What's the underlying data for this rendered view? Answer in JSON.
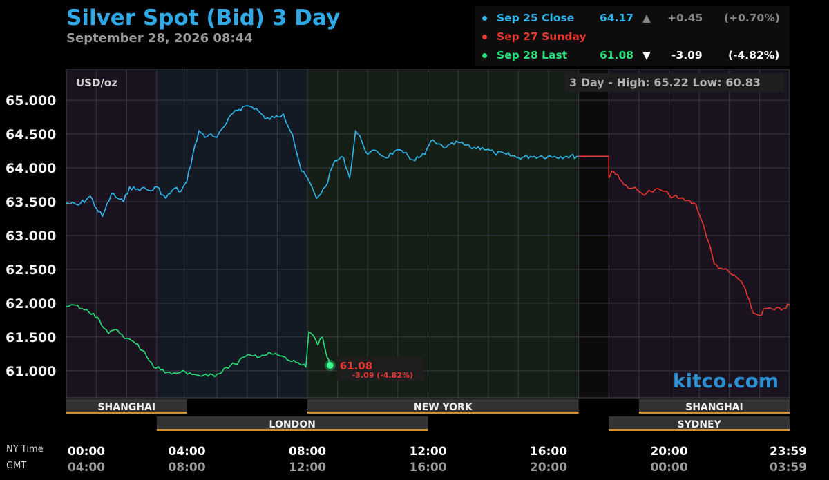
{
  "header": {
    "title": "Silver Spot (Bid) 3 Day",
    "subtitle": "September 28, 2026 08:44"
  },
  "legend": [
    {
      "label": "Sep 25 Close",
      "value": "64.17",
      "arrow": "▲",
      "change": "+0.45",
      "pct": "(+0.70%)",
      "color": "#2fb8f0"
    },
    {
      "label": "Sep 27 Sunday",
      "value": "",
      "arrow": "",
      "change": "",
      "pct": "",
      "color": "#e8382f"
    },
    {
      "label": "Sep 28 Last",
      "value": "61.08",
      "arrow": "▼",
      "change": "-3.09",
      "pct": "(-4.82%)",
      "color": "#28e07a"
    }
  ],
  "plot_labels": {
    "unit": "USD/oz",
    "range": "3 Day - High: 65.22  Low: 60.83",
    "watermark": "kitco.com",
    "last_price": "61.08",
    "last_change": "-3.09 (-4.82%)"
  },
  "axis_labels": {
    "ny": "NY Time",
    "gmt": "GMT"
  },
  "sessions": [
    {
      "name": "SHANGHAI",
      "start": 0,
      "end": 4,
      "row": 0
    },
    {
      "name": "NEW YORK",
      "start": 8,
      "end": 17,
      "row": 0
    },
    {
      "name": "SHANGHAI",
      "start": 19,
      "end": 24,
      "row": 0
    },
    {
      "name": "LONDON",
      "start": 3,
      "end": 12,
      "row": 1
    },
    {
      "name": "SYDNEY",
      "start": 18,
      "end": 24,
      "row": 1
    }
  ],
  "chart_data": {
    "type": "line",
    "title": "Silver Spot (Bid) 3 Day",
    "ylabel": "USD/oz",
    "ylim": [
      60.6,
      65.45
    ],
    "xlim": [
      0,
      24
    ],
    "y_ticks": [
      "65.000",
      "64.500",
      "64.000",
      "63.500",
      "63.000",
      "62.500",
      "62.000",
      "61.500",
      "61.000"
    ],
    "y_tick_values": [
      65.0,
      64.5,
      64.0,
      63.5,
      63.0,
      62.5,
      62.0,
      61.5,
      61.0
    ],
    "x_ticks_ny": [
      "00:00",
      "04:00",
      "08:00",
      "12:00",
      "16:00",
      "20:00",
      "23:59"
    ],
    "x_ticks_gmt": [
      "04:00",
      "08:00",
      "12:00",
      "16:00",
      "20:00",
      "00:00",
      "03:59"
    ],
    "x_tick_hours": [
      0,
      4,
      8,
      12,
      16,
      20,
      24
    ],
    "high": 65.22,
    "low": 60.83,
    "series": [
      {
        "name": "Sep 25 Close",
        "color": "#2fb8f0",
        "x": [
          0,
          0.4,
          0.8,
          1.0,
          1.2,
          1.5,
          1.7,
          1.9,
          2.1,
          2.3,
          2.5,
          2.8,
          3.0,
          3.3,
          3.6,
          3.8,
          4.0,
          4.2,
          4.4,
          4.6,
          4.8,
          5.0,
          5.3,
          5.6,
          6.0,
          6.3,
          6.6,
          6.9,
          7.2,
          7.5,
          7.8,
          8.0,
          8.3,
          8.6,
          8.9,
          9.2,
          9.4,
          9.6,
          9.8,
          10.0,
          10.3,
          10.6,
          10.9,
          11.2,
          11.5,
          11.7,
          11.9,
          12.1,
          12.3,
          12.6,
          13.0,
          13.4,
          13.8,
          14.2,
          14.6,
          15.0,
          15.4,
          15.8,
          16.2,
          16.6,
          17.0
        ],
        "values": [
          63.48,
          63.45,
          63.58,
          63.4,
          63.28,
          63.62,
          63.55,
          63.5,
          63.72,
          63.68,
          63.7,
          63.66,
          63.72,
          63.55,
          63.7,
          63.65,
          63.8,
          64.2,
          64.55,
          64.45,
          64.5,
          64.45,
          64.65,
          64.85,
          64.92,
          64.88,
          64.72,
          64.74,
          64.8,
          64.5,
          63.95,
          63.85,
          63.55,
          63.72,
          64.1,
          64.15,
          63.85,
          64.55,
          64.4,
          64.2,
          64.25,
          64.15,
          64.25,
          64.22,
          64.12,
          64.15,
          64.2,
          64.4,
          64.35,
          64.3,
          64.38,
          64.3,
          64.3,
          64.22,
          64.2,
          64.15,
          64.17,
          64.17,
          64.17,
          64.17,
          64.17
        ]
      },
      {
        "name": "Sep 27 Sunday",
        "color": "#e8382f",
        "x": [
          18.0,
          18.1,
          18.3,
          18.5,
          18.8,
          19.1,
          19.4,
          19.7,
          20.0,
          20.3,
          20.6,
          20.9,
          21.1,
          21.3,
          21.5,
          21.8,
          22.1,
          22.4,
          22.6,
          22.8,
          23.0,
          23.2,
          23.5,
          23.8,
          24.0
        ],
        "values": [
          63.85,
          63.95,
          63.9,
          63.75,
          63.7,
          63.62,
          63.65,
          63.68,
          63.6,
          63.55,
          63.52,
          63.45,
          63.2,
          62.92,
          62.58,
          62.5,
          62.42,
          62.32,
          62.1,
          61.85,
          61.82,
          61.92,
          61.9,
          61.92,
          61.97
        ]
      },
      {
        "name": "Sep 28 Last",
        "color": "#28e07a",
        "x": [
          0,
          0.3,
          0.6,
          0.9,
          1.1,
          1.4,
          1.7,
          2.0,
          2.3,
          2.6,
          2.9,
          3.2,
          3.5,
          3.8,
          4.1,
          4.4,
          4.7,
          5.0,
          5.3,
          5.6,
          5.9,
          6.2,
          6.5,
          6.8,
          7.1,
          7.4,
          7.7,
          7.95,
          8.05,
          8.2,
          8.35,
          8.5,
          8.65,
          8.75
        ],
        "values": [
          61.95,
          61.97,
          61.9,
          61.85,
          61.75,
          61.55,
          61.6,
          61.48,
          61.4,
          61.28,
          61.05,
          61.02,
          60.95,
          60.98,
          60.97,
          60.93,
          60.92,
          60.95,
          61.05,
          61.1,
          61.2,
          61.22,
          61.23,
          61.25,
          61.22,
          61.15,
          61.12,
          61.05,
          61.58,
          61.52,
          61.38,
          61.5,
          61.2,
          61.08
        ]
      }
    ],
    "last_point": {
      "x": 8.75,
      "y": 61.08
    }
  }
}
